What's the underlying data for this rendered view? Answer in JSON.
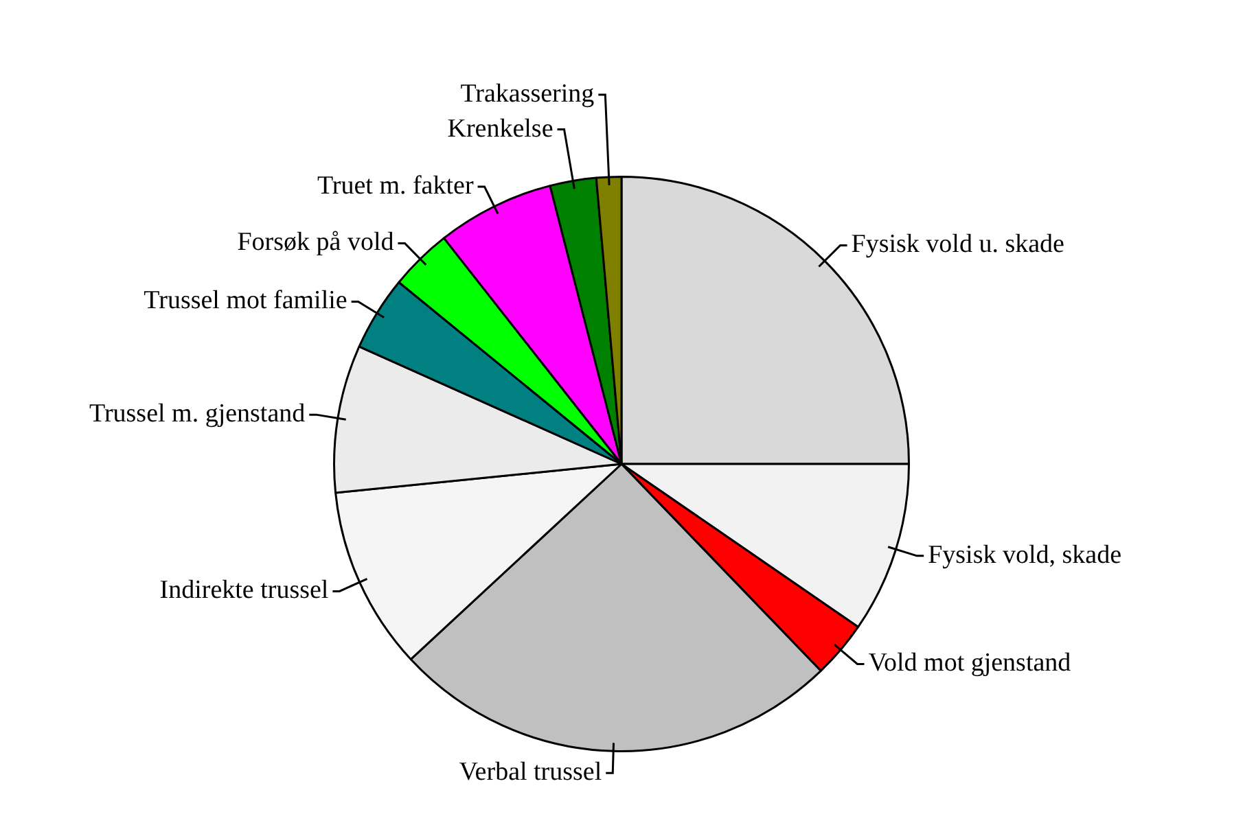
{
  "chart_data": {
    "type": "pie",
    "categories": [
      "Fysisk vold u. skade",
      "Fysisk vold, skade",
      "Vold mot gjenstand",
      "Verbal trussel",
      "Indirekte trussel",
      "Trussel m. gjenstand",
      "Trussel mot familie",
      "Forsøk på vold",
      "Truet m. fakter",
      "Krenkelse",
      "Trakassering"
    ],
    "values": [
      25,
      9.6,
      3.2,
      25.3,
      10.3,
      8.3,
      4.2,
      3.5,
      6.6,
      2.6,
      1.4
    ],
    "colors": [
      "#d9d9d9",
      "#f2f2f2",
      "#ff0000",
      "#c0c0c0",
      "#f5f5f5",
      "#ebebeb",
      "#008080",
      "#00ff00",
      "#ff00ff",
      "#008000",
      "#808000"
    ],
    "legend": false
  }
}
